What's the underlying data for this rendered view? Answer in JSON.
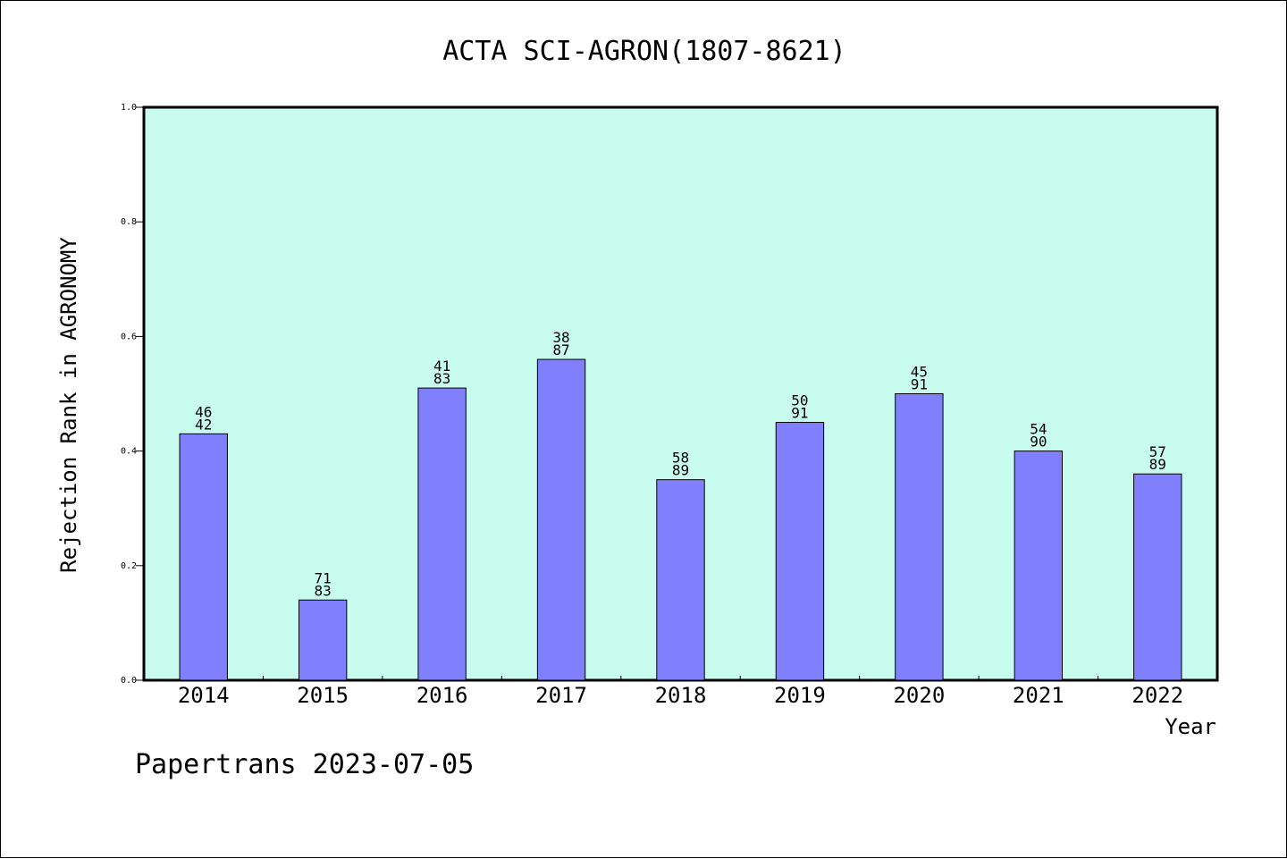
{
  "chart_data": {
    "type": "bar",
    "title": "ACTA SCI-AGRON(1807-8621)",
    "xlabel": "Year",
    "ylabel": "Rejection Rank in AGRONOMY",
    "ylim": [
      0,
      1.0
    ],
    "yticks": [
      "0.0",
      "0.2",
      "0.4",
      "0.6",
      "0.8",
      "1.0"
    ],
    "categories": [
      "2014",
      "2015",
      "2016",
      "2017",
      "2018",
      "2019",
      "2020",
      "2021",
      "2022"
    ],
    "values": [
      0.43,
      0.14,
      0.51,
      0.56,
      0.35,
      0.45,
      0.5,
      0.4,
      0.36
    ],
    "label_top": [
      "46",
      "71",
      "41",
      "38",
      "58",
      "50",
      "45",
      "54",
      "57"
    ],
    "label_bottom": [
      "42",
      "83",
      "83",
      "87",
      "89",
      "91",
      "91",
      "90",
      "89"
    ],
    "grid": false,
    "legend": "none",
    "colors": {
      "plot_bg": "#c8fcee",
      "bar": "#8080ff",
      "bar_edge": "#000000"
    }
  },
  "footer": {
    "text": "Papertrans 2023-07-05"
  }
}
